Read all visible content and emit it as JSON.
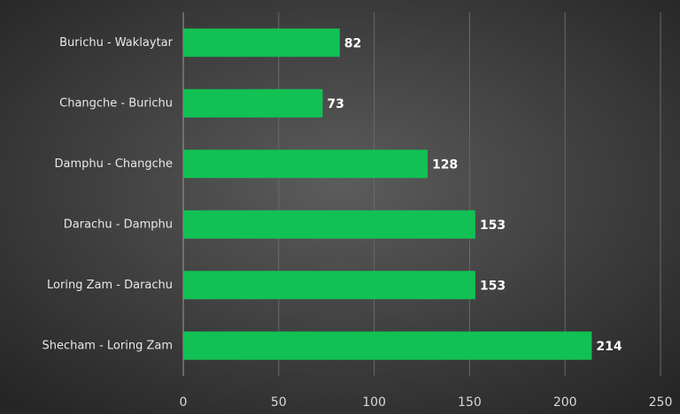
{
  "chart_data": {
    "type": "bar",
    "orientation": "horizontal",
    "categories": [
      "Burichu - Waklaytar",
      "Changche - Burichu",
      "Damphu - Changche",
      "Darachu - Damphu",
      "Loring Zam - Darachu",
      "Shecham - Loring Zam"
    ],
    "values": [
      82,
      73,
      128,
      153,
      153,
      214
    ],
    "color": "#12c154",
    "xlim": [
      0,
      250
    ],
    "xticks": [
      0,
      50,
      100,
      150,
      200,
      250
    ],
    "grid": true
  }
}
